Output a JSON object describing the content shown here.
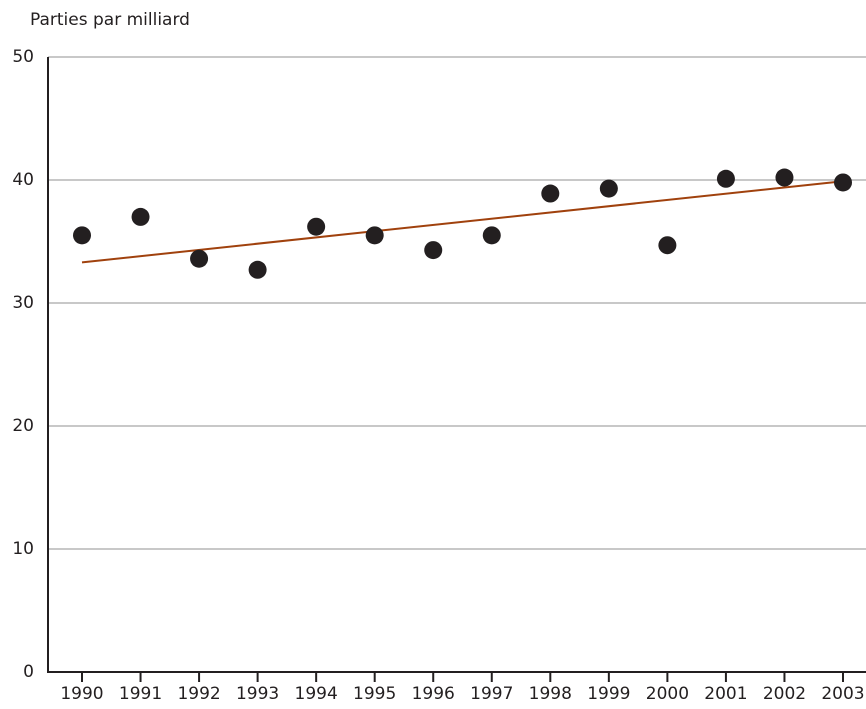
{
  "chart_data": {
    "type": "scatter",
    "y_label": "Parties par milliard",
    "categories": [
      "1990",
      "1991",
      "1992",
      "1993",
      "1994",
      "1995",
      "1996",
      "1997",
      "1998",
      "1999",
      "2000",
      "2001",
      "2002",
      "2003"
    ],
    "values": [
      35.5,
      37.0,
      33.6,
      32.7,
      36.2,
      35.5,
      34.3,
      35.5,
      38.9,
      39.3,
      34.7,
      40.1,
      40.2,
      39.8
    ],
    "color": "#231f20",
    "trend": {
      "values": [
        33.3,
        39.9
      ],
      "color": "#a0410d"
    },
    "ylim": [
      0,
      50
    ],
    "yticks": [
      0,
      10,
      20,
      30,
      40,
      50
    ],
    "grid": true
  }
}
